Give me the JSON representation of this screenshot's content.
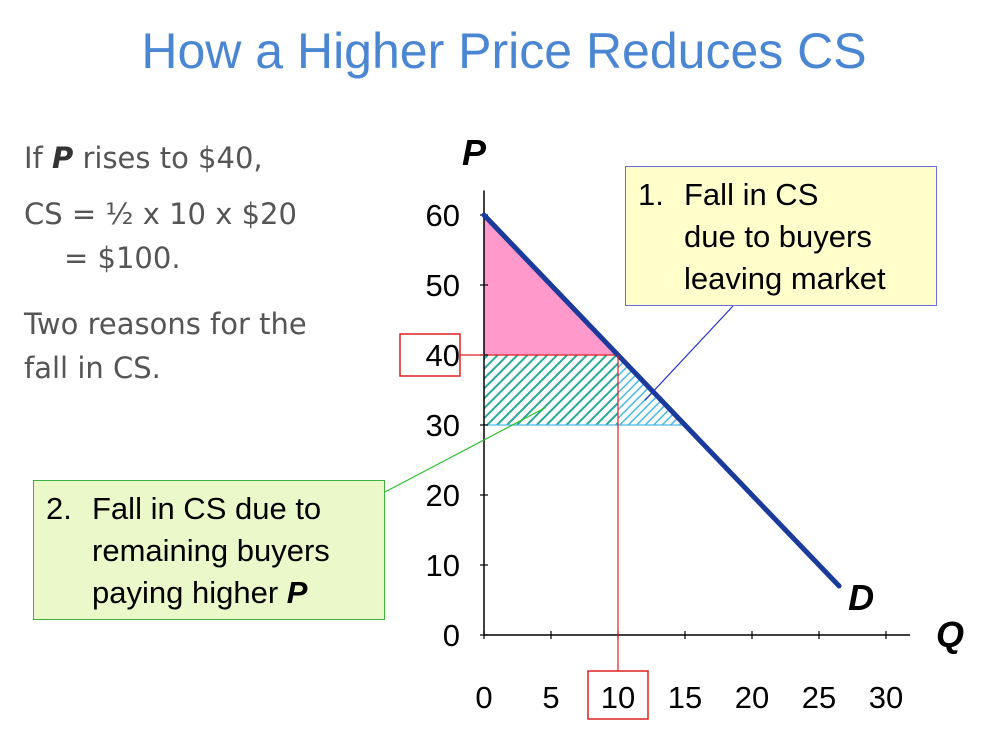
{
  "title": "How a Higher Price Reduces CS",
  "left_text": {
    "line1_prefix": "If ",
    "line1_var": "P",
    "line1_suffix": " rises to $40,",
    "line2": "CS = ½ x 10 x $20",
    "line3": "= $100.",
    "line4": "Two reasons for the",
    "line5": "fall in CS."
  },
  "callout1": {
    "number": "1.",
    "lines": [
      "Fall in CS",
      "due to buyers",
      "leaving market"
    ]
  },
  "callout2": {
    "number": "2.",
    "lines": [
      "Fall in CS due to",
      "remaining buyers",
      "paying higher "
    ],
    "var": "P"
  },
  "colors": {
    "title": "#4a86d2",
    "demand_line": "#1a3a9c",
    "pink_area": "#ff99cc",
    "green_hatch": "#2aa89a",
    "blue_hatch": "#4db8e8",
    "highlight_box": "#e02020"
  },
  "chart_data": {
    "type": "line",
    "xlabel": "Q",
    "ylabel": "P",
    "xlim": [
      0,
      30
    ],
    "ylim": [
      0,
      60
    ],
    "x_ticks": [
      "0",
      "5",
      "10",
      "15",
      "20",
      "25",
      "30"
    ],
    "y_ticks": [
      "0",
      "10",
      "20",
      "30",
      "40",
      "50",
      "60"
    ],
    "demand": {
      "label": "D",
      "points": [
        [
          0,
          60
        ],
        [
          26.5,
          7
        ]
      ]
    },
    "new_price": 40,
    "old_price": 30,
    "new_quantity": 10,
    "old_quantity": 15,
    "highlighted_x_tick": "10",
    "highlighted_y_tick": "40",
    "areas": [
      {
        "name": "remaining CS",
        "fill": "solid",
        "vertices": [
          [
            0,
            60
          ],
          [
            0,
            40
          ],
          [
            10,
            40
          ]
        ]
      },
      {
        "name": "fall due to higher P",
        "fill": "hatched",
        "vertices": [
          [
            0,
            40
          ],
          [
            10,
            40
          ],
          [
            10,
            30
          ],
          [
            0,
            30
          ]
        ]
      },
      {
        "name": "fall due to buyers leaving",
        "fill": "hatched",
        "vertices": [
          [
            10,
            40
          ],
          [
            10,
            30
          ],
          [
            15,
            30
          ]
        ]
      }
    ]
  }
}
